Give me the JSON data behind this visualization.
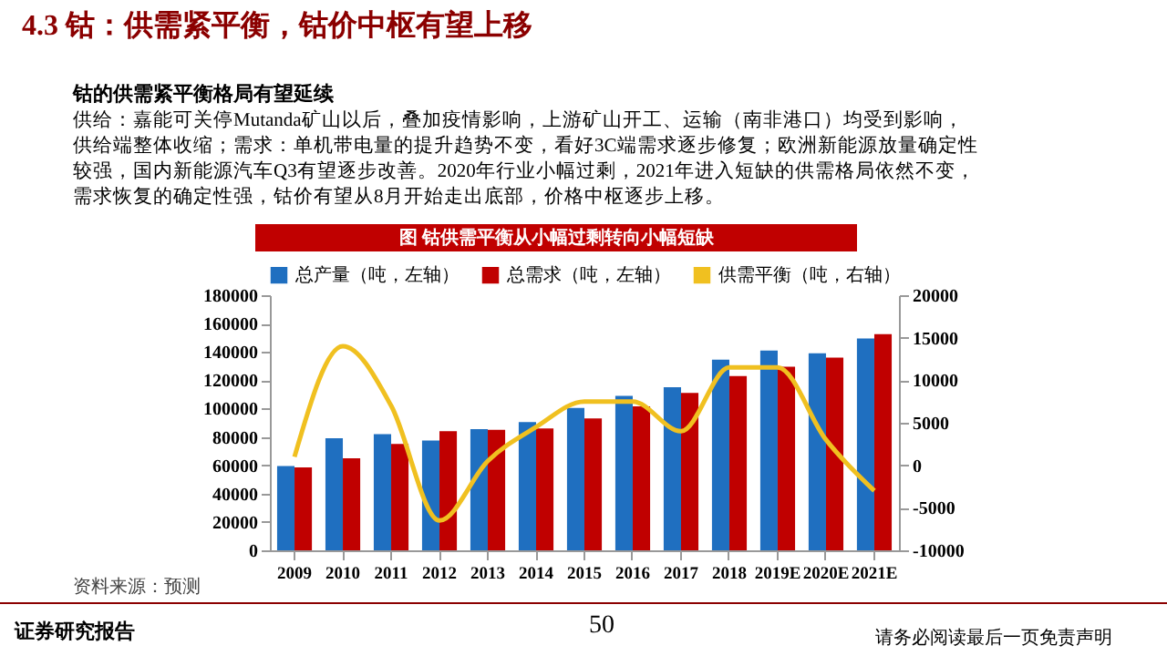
{
  "chart_data": {
    "type": "bar",
    "title": "4.3 钴：供需紧平衡，钴价中枢有望上移",
    "subtitle": "钴的供需紧平衡格局有望延续",
    "annotations": [
      "供给：嘉能可关停Mutanda矿山以后，叠加疫情影响，上游矿山开工、运输（南非港口）均受到影响，",
      "供给端整体收缩；需求：单机带电量的提升趋势不变，看好3C端需求逐步修复；欧洲新能源放量确定性",
      "较强，国内新能源汽车Q3有望逐步改善。2020年行业小幅过剩，2021年进入短缺的供需格局依然不变，",
      "需求恢复的确定性强，钴价有望从8月开始走出底部，价格中枢逐步上移。",
      "图 钴供需平衡从小幅过剩转向小幅短缺",
      "资料来源：预测",
      "证券研究报告",
      "50",
      "请务必阅读最后一页免责声明"
    ],
    "categories": [
      "2009",
      "2010",
      "2011",
      "2012",
      "2013",
      "2014",
      "2015",
      "2016",
      "2017",
      "2018",
      "2019E",
      "2020E",
      "2021E"
    ],
    "series": [
      {
        "name": "总产量（吨，左轴）",
        "color": "#1f6fc0",
        "values": [
          59500,
          79000,
          82000,
          77500,
          85500,
          90500,
          100500,
          109000,
          115000,
          134500,
          141000,
          139000,
          149500
        ]
      },
      {
        "name": "总需求（吨，左轴）",
        "color": "#c00000",
        "values": [
          58500,
          65000,
          75000,
          84000,
          85000,
          86000,
          93000,
          101500,
          111000,
          123000,
          129500,
          136000,
          152500
        ]
      },
      {
        "name": "供需平衡（吨，右轴）",
        "color": "#f0c020",
        "type": "line",
        "axis": "y2",
        "values": [
          1000,
          14000,
          7000,
          -6500,
          500,
          4500,
          7500,
          7500,
          4000,
          11500,
          11500,
          3000,
          -3000
        ]
      }
    ],
    "ylim": [
      0,
      180000
    ],
    "yticks": [
      0,
      20000,
      40000,
      60000,
      80000,
      100000,
      120000,
      140000,
      160000,
      180000
    ],
    "y2lim": [
      -10000,
      20000
    ],
    "y2ticks": [
      -10000,
      -5000,
      0,
      5000,
      10000,
      15000,
      20000
    ],
    "legend": "top",
    "grid": false,
    "marker": "none",
    "line_style": "solid"
  }
}
